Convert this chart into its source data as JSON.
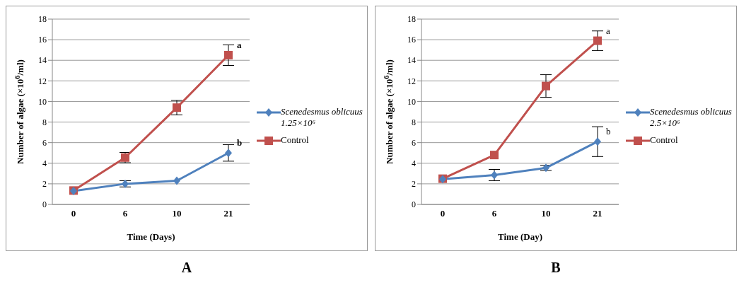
{
  "chart_data": [
    {
      "type": "line",
      "categories": [
        "0",
        "6",
        "10",
        "21"
      ],
      "xlabel": "Time (Days)",
      "ylabel": "Number  of algae (×10$^{6}$/ml)",
      "ylim": [
        0,
        18
      ],
      "yticks": [
        0,
        2,
        4,
        6,
        8,
        10,
        12,
        14,
        16,
        18
      ],
      "grid": "y",
      "legend": "right",
      "series": [
        {
          "name": "Scenedesmus oblicuus 1.25×10⁶",
          "color": "#4f81bd",
          "marker": "diamond",
          "values": [
            1.3,
            2.0,
            2.3,
            5.0
          ],
          "errors": [
            null,
            0.3,
            null,
            0.8
          ]
        },
        {
          "name": "Control",
          "color": "#c0504d",
          "marker": "square",
          "values": [
            1.35,
            4.55,
            9.4,
            14.5
          ],
          "errors": [
            null,
            0.5,
            0.7,
            1.0
          ]
        }
      ],
      "annotations": [
        {
          "text": "a",
          "x": "21",
          "y": 14.5
        },
        {
          "text": "b",
          "x": "21",
          "y": 5.0
        },
        "A"
      ]
    },
    {
      "type": "line",
      "categories": [
        "0",
        "6",
        "10",
        "21"
      ],
      "xlabel": "Time (Day)",
      "ylabel": "Number  of algae (×10$^{6}$/ml)",
      "ylim": [
        0,
        18
      ],
      "yticks": [
        0,
        2,
        4,
        6,
        8,
        10,
        12,
        14,
        16,
        18
      ],
      "grid": "y",
      "legend": "right",
      "series": [
        {
          "name": "Scenedesmus oblicuus 2.5×10⁶",
          "color": "#4f81bd",
          "marker": "diamond",
          "values": [
            2.45,
            2.85,
            3.55,
            6.1
          ],
          "errors": [
            null,
            0.55,
            0.25,
            1.45
          ]
        },
        {
          "name": "Control",
          "color": "#c0504d",
          "marker": "square",
          "values": [
            2.5,
            4.8,
            11.5,
            15.9
          ],
          "errors": [
            null,
            null,
            1.1,
            0.95
          ]
        }
      ],
      "annotations": [
        {
          "text": "a",
          "x": "21",
          "y": 15.9
        },
        {
          "text": "b",
          "x": "21",
          "y": 6.1
        },
        "B"
      ]
    }
  ]
}
